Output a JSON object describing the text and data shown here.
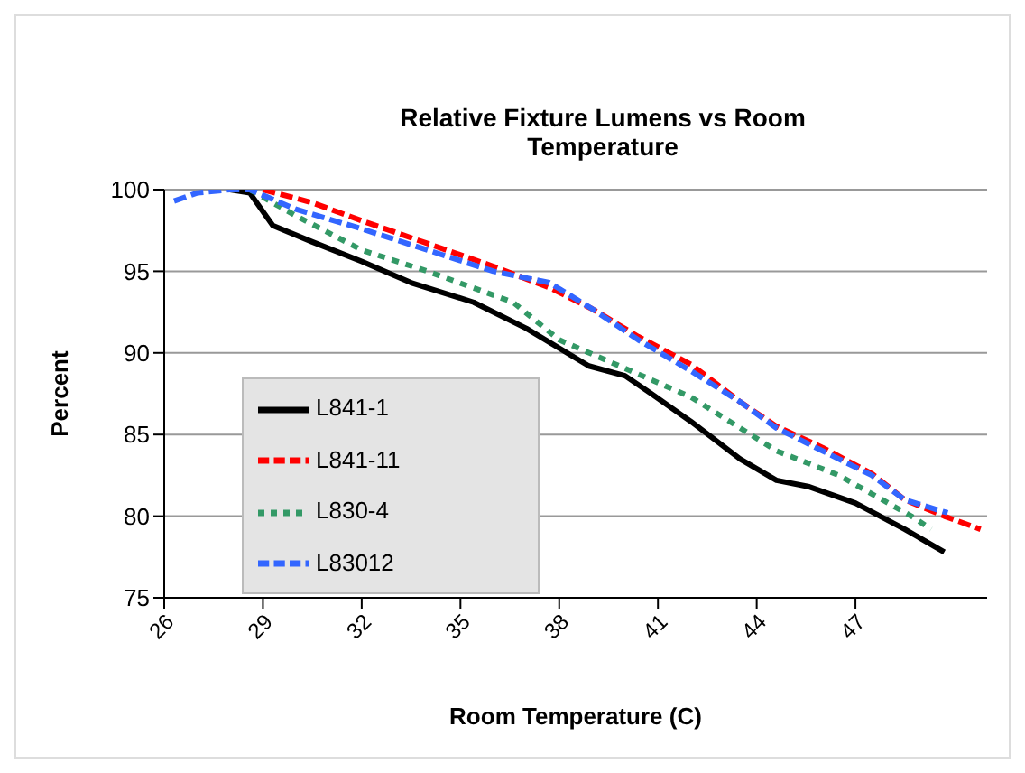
{
  "chart_data": {
    "type": "line",
    "title": "Relative Fixture Lumens vs Room Temperature",
    "xlabel": "Room Temperature (C)",
    "ylabel": "Percent",
    "xlim": [
      26,
      51
    ],
    "xticks": [
      26,
      29,
      32,
      35,
      38,
      41,
      44,
      47
    ],
    "ylim": [
      75,
      100
    ],
    "yticks": [
      75,
      80,
      85,
      90,
      95,
      100
    ],
    "grid": "y",
    "legend": "bottom left",
    "marker": "none",
    "series": [
      {
        "name": "L841-1",
        "color": "#000000",
        "line_style": "solid",
        "x": [
          28,
          28.6,
          29.3,
          30.5,
          32,
          33.5,
          35.4,
          37,
          38.9,
          40,
          40.8,
          42,
          43.5,
          44.6,
          45.6,
          47,
          48.5,
          49.7
        ],
        "values": [
          100,
          99.8,
          97.8,
          96.8,
          95.6,
          94.3,
          93.1,
          91.5,
          89.2,
          88.6,
          87.5,
          85.8,
          83.5,
          82.2,
          81.8,
          80.8,
          79.2,
          77.8
        ]
      },
      {
        "name": "L841-11",
        "color": "#ff0000",
        "line_style": "dashed",
        "x": [
          29,
          30.5,
          32,
          34,
          36,
          37.7,
          39,
          40.4,
          42,
          43.5,
          44.6,
          46,
          47.5,
          48.5,
          49.7,
          50.8
        ],
        "values": [
          100,
          99.2,
          98.1,
          96.7,
          95.3,
          94,
          92.7,
          91,
          89.3,
          87,
          85.5,
          84.2,
          82.6,
          81,
          80,
          79.2
        ]
      },
      {
        "name": "L830-4",
        "color": "#339966",
        "line_style": "dotted",
        "x": [
          28.6,
          30,
          32,
          34,
          36.6,
          38,
          40.4,
          42,
          44.6,
          46.5,
          48.7,
          49.3
        ],
        "values": [
          100,
          98.4,
          96.3,
          95,
          93.1,
          90.8,
          88.7,
          87.3,
          84,
          82.5,
          80,
          79.2
        ]
      },
      {
        "name": "L83012",
        "color": "#3366ff",
        "line_style": "dashed",
        "x": [
          26.3,
          27,
          28,
          28.6,
          30,
          32,
          34,
          36,
          37.7,
          39,
          40.4,
          42,
          43.5,
          44.6,
          46,
          47.5,
          48.5,
          49.8
        ],
        "values": [
          99.3,
          99.8,
          100,
          100,
          98.8,
          97.6,
          96.3,
          95,
          94.3,
          92.7,
          90.8,
          88.9,
          87,
          85.4,
          84,
          82.5,
          81,
          80.2
        ]
      }
    ]
  }
}
